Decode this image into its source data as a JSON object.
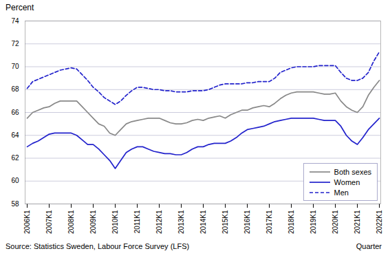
{
  "chart_data": {
    "type": "line",
    "ylabel": "Percent",
    "xlabel": "Quarter",
    "source": "Source: Statistics Sweden, Labour Force Survey (LFS)",
    "categories": [
      "2006K1",
      null,
      null,
      null,
      "2007K1",
      null,
      null,
      null,
      "2008K1",
      null,
      null,
      null,
      "2009K1",
      null,
      null,
      null,
      "2010K1",
      null,
      null,
      null,
      "2011K1",
      null,
      null,
      null,
      "2012K1",
      null,
      null,
      null,
      "2013K1",
      null,
      null,
      null,
      "2014K1",
      null,
      null,
      null,
      "2015K1",
      null,
      null,
      null,
      "2016K1",
      null,
      null,
      null,
      "2017K1",
      null,
      null,
      null,
      "2018K1",
      null,
      null,
      null,
      "2019K1",
      null,
      null,
      null,
      "2020K1",
      null,
      null,
      null,
      "2021K1",
      null,
      null,
      null,
      "2022K1"
    ],
    "ylim": [
      58,
      74
    ],
    "yticks": [
      58,
      60,
      62,
      64,
      66,
      68,
      70,
      72,
      74
    ],
    "grid": true,
    "legend": "lower right",
    "series": [
      {
        "name": "Both sexes",
        "color": "#888888",
        "line_style": "solid",
        "values": [
          65.5,
          66.0,
          66.2,
          66.4,
          66.5,
          66.8,
          67.0,
          67.0,
          67.0,
          67.0,
          66.5,
          66.0,
          65.5,
          65.0,
          64.8,
          64.2,
          64.0,
          64.5,
          65.0,
          65.2,
          65.3,
          65.4,
          65.5,
          65.5,
          65.5,
          65.3,
          65.1,
          65.0,
          65.0,
          65.1,
          65.3,
          65.4,
          65.3,
          65.5,
          65.6,
          65.7,
          65.5,
          65.8,
          66.0,
          66.2,
          66.2,
          66.4,
          66.5,
          66.6,
          66.5,
          66.8,
          67.2,
          67.5,
          67.7,
          67.8,
          67.8,
          67.8,
          67.8,
          67.7,
          67.6,
          67.6,
          67.7,
          67.0,
          66.5,
          66.2,
          66.0,
          66.5,
          67.5,
          68.2,
          68.8
        ]
      },
      {
        "name": "Women",
        "color": "#2222cc",
        "line_style": "solid",
        "values": [
          63.0,
          63.3,
          63.5,
          63.8,
          64.1,
          64.2,
          64.2,
          64.2,
          64.2,
          64.0,
          63.6,
          63.2,
          63.2,
          62.8,
          62.3,
          61.8,
          61.1,
          61.8,
          62.5,
          62.8,
          63.0,
          63.0,
          62.8,
          62.6,
          62.5,
          62.4,
          62.4,
          62.3,
          62.3,
          62.5,
          62.8,
          63.0,
          63.0,
          63.2,
          63.3,
          63.3,
          63.3,
          63.5,
          63.8,
          64.2,
          64.5,
          64.6,
          64.7,
          64.8,
          65.0,
          65.2,
          65.3,
          65.4,
          65.5,
          65.5,
          65.5,
          65.5,
          65.5,
          65.4,
          65.3,
          65.3,
          65.3,
          64.8,
          64.0,
          63.5,
          63.2,
          63.8,
          64.5,
          65.0,
          65.5
        ]
      },
      {
        "name": "Men",
        "color": "#2222cc",
        "line_style": "dashed",
        "values": [
          68.1,
          68.7,
          68.9,
          69.1,
          69.3,
          69.5,
          69.7,
          69.8,
          69.9,
          69.8,
          69.3,
          68.8,
          68.2,
          67.8,
          67.3,
          67.0,
          66.7,
          67.0,
          67.5,
          67.9,
          68.2,
          68.2,
          68.1,
          68.0,
          68.0,
          67.9,
          67.9,
          67.8,
          67.8,
          67.8,
          67.9,
          67.9,
          67.9,
          68.0,
          68.2,
          68.4,
          68.5,
          68.5,
          68.5,
          68.5,
          68.6,
          68.6,
          68.7,
          68.7,
          68.7,
          69.0,
          69.5,
          69.7,
          69.9,
          70.0,
          70.0,
          70.0,
          70.0,
          70.1,
          70.1,
          70.1,
          70.1,
          69.5,
          69.0,
          68.8,
          68.8,
          69.0,
          69.5,
          70.5,
          71.3
        ]
      }
    ]
  }
}
